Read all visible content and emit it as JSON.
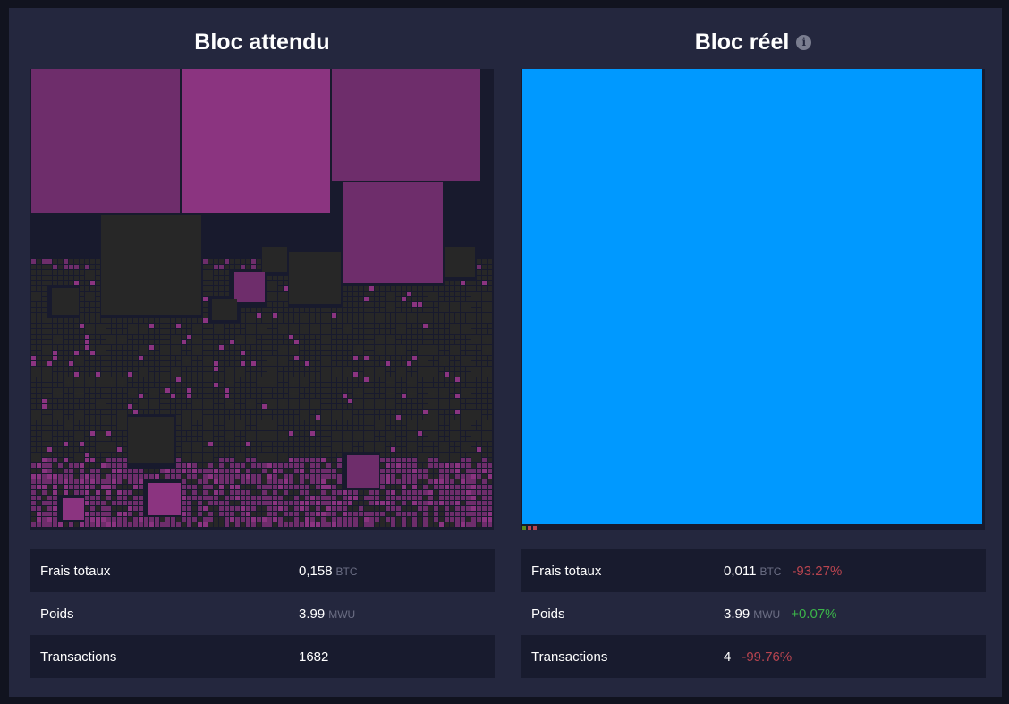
{
  "expected": {
    "title": "Bloc attendu",
    "stats": [
      {
        "label": "Frais totaux",
        "value": "0,158",
        "unit": "BTC"
      },
      {
        "label": "Poids",
        "value": "3.99",
        "unit": "MWU"
      },
      {
        "label": "Transactions",
        "value": "1682"
      }
    ]
  },
  "actual": {
    "title": "Bloc réel",
    "info_icon": "info-circle-icon",
    "info_glyph": "i",
    "stats": [
      {
        "label": "Frais totaux",
        "value": "0,011",
        "unit": "BTC",
        "delta": "-93.27%"
      },
      {
        "label": "Poids",
        "value": "3.99",
        "unit": "MWU",
        "delta": "+0.07%"
      },
      {
        "label": "Transactions",
        "value": "4",
        "delta": "-99.76%"
      }
    ]
  },
  "colors": {
    "tx_purple": "#6e2d6b",
    "tx_purple_bright": "#8b3480",
    "tx_grey": "#272727",
    "tx_blue": "#0099ff",
    "negative": "#b8444f",
    "positive": "#3bb44a"
  }
}
